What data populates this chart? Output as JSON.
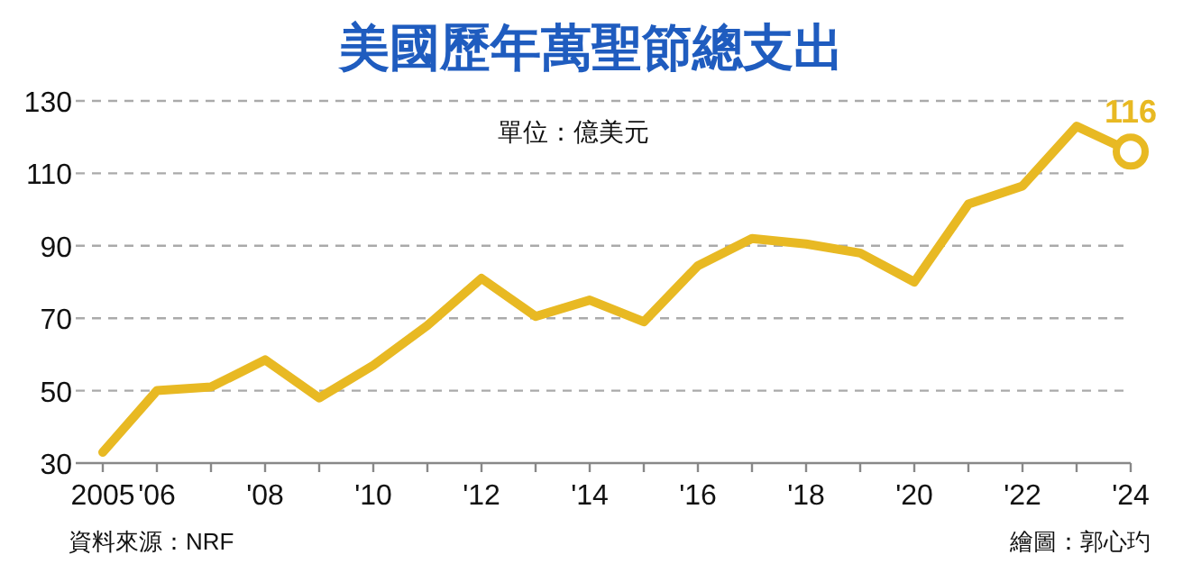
{
  "chart_data": {
    "type": "line",
    "title": "美國歷年萬聖節總支出",
    "subtitle": "單位：億美元",
    "x": [
      2005,
      2006,
      2007,
      2008,
      2009,
      2010,
      2011,
      2012,
      2013,
      2014,
      2015,
      2016,
      2017,
      2018,
      2019,
      2020,
      2021,
      2022,
      2023,
      2024
    ],
    "series": [
      {
        "color": "#e8b923",
        "values": [
          33,
          50,
          51,
          58.5,
          48,
          57,
          68,
          81,
          70.5,
          75,
          69,
          84.5,
          92,
          90.5,
          88,
          80,
          101.5,
          106.5,
          123,
          116
        ]
      }
    ],
    "xlim": [
      2004.5,
      2024
    ],
    "ylim": [
      30,
      130
    ],
    "xticks": [
      {
        "value": 2005,
        "label": "2005"
      },
      {
        "value": 2006,
        "label": "'06"
      },
      {
        "value": 2007,
        "label": null
      },
      {
        "value": 2008,
        "label": "'08"
      },
      {
        "value": 2009,
        "label": null
      },
      {
        "value": 2010,
        "label": "'10"
      },
      {
        "value": 2011,
        "label": null
      },
      {
        "value": 2012,
        "label": "'12"
      },
      {
        "value": 2013,
        "label": null
      },
      {
        "value": 2014,
        "label": "'14"
      },
      {
        "value": 2015,
        "label": null
      },
      {
        "value": 2016,
        "label": "'16"
      },
      {
        "value": 2017,
        "label": null
      },
      {
        "value": 2018,
        "label": "'18"
      },
      {
        "value": 2019,
        "label": null
      },
      {
        "value": 2020,
        "label": "'20"
      },
      {
        "value": 2021,
        "label": null
      },
      {
        "value": 2022,
        "label": "'22"
      },
      {
        "value": 2023,
        "label": null
      },
      {
        "value": 2024,
        "label": "'24"
      }
    ],
    "yticks": [
      30,
      50,
      70,
      90,
      110,
      130
    ],
    "grid": "y",
    "marker": "none",
    "line_style": "solid",
    "annotations": [
      {
        "text": "116",
        "x": 2024,
        "y": 116
      },
      "資料來源：NRF",
      "繪圖：郭心玓"
    ]
  }
}
